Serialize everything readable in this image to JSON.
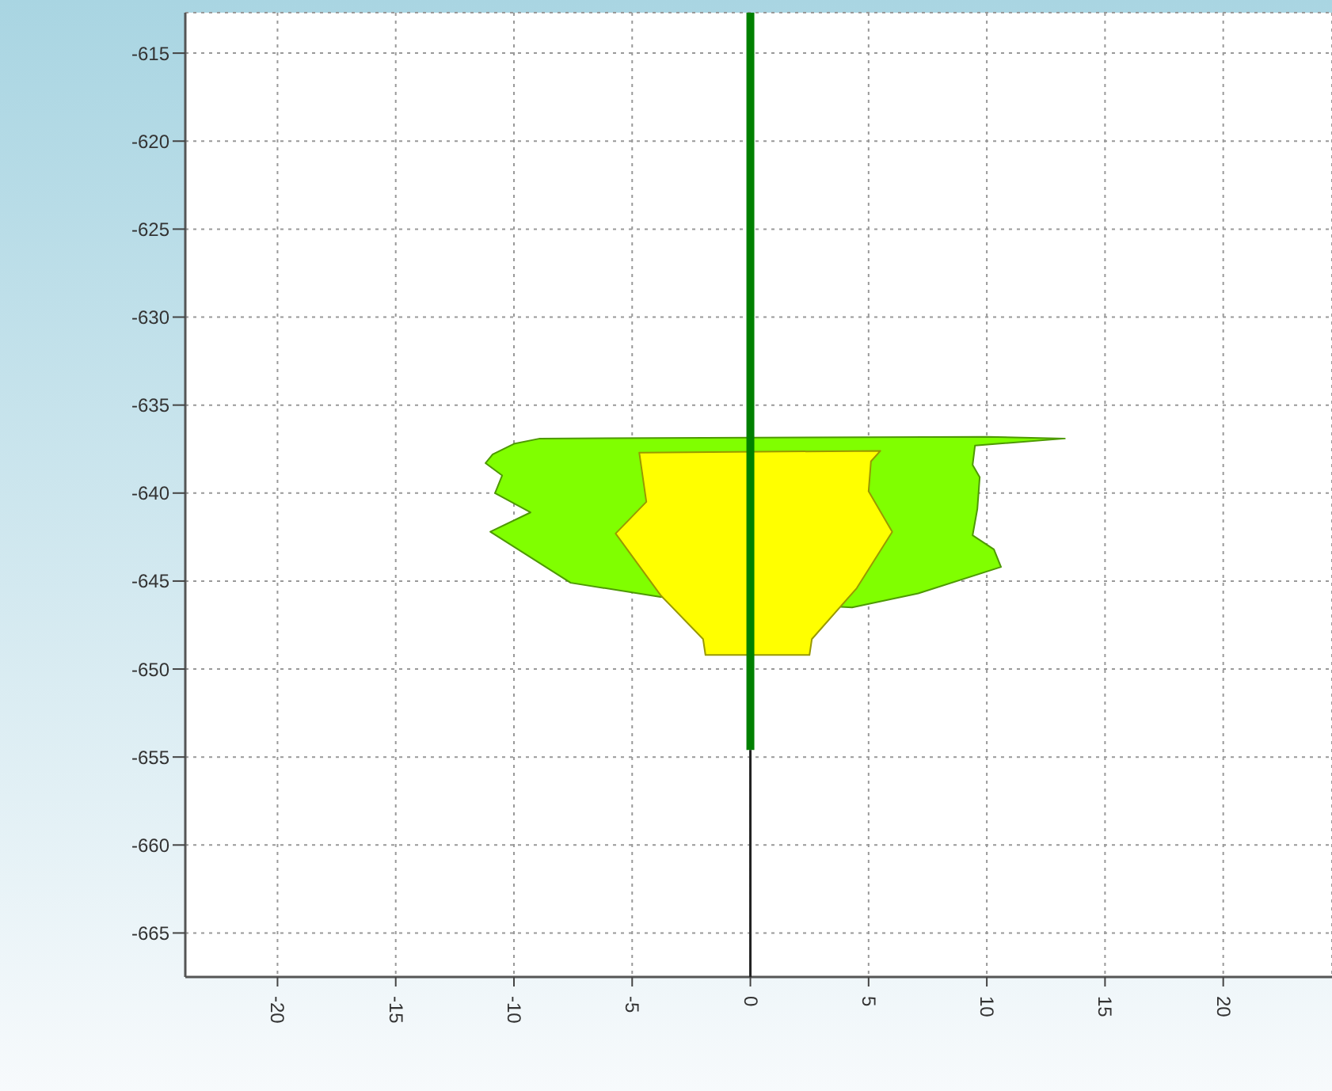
{
  "chart_data": {
    "type": "area",
    "xlim": [
      -23.9,
      24.6
    ],
    "xticks": [
      -20,
      -15,
      -10,
      -5,
      0,
      5,
      10,
      15,
      20
    ],
    "ylim": [
      -667.5,
      -612.7
    ],
    "yticks": [
      -615,
      -620,
      -625,
      -630,
      -635,
      -640,
      -645,
      -650,
      -655,
      -660,
      -665
    ],
    "grid": true,
    "marker": "none",
    "series": [
      {
        "color": "#80ff00",
        "x": [
          -10.0,
          -10.9,
          -11.2,
          -10.5,
          -10.8,
          -9.3,
          -11.0,
          -7.6,
          -3.8,
          4.3,
          7.1,
          10.6,
          10.3,
          9.4,
          9.6,
          9.7,
          9.4,
          9.5,
          13.3,
          10.0,
          -8.9
        ],
        "values": [
          -637.2,
          -637.8,
          -638.3,
          -639.0,
          -640.0,
          -641.1,
          -642.2,
          -645.1,
          -645.9,
          -646.5,
          -645.7,
          -644.2,
          -643.2,
          -642.4,
          -640.9,
          -639.1,
          -638.4,
          -637.3,
          -636.9,
          -636.8,
          -636.9
        ]
      },
      {
        "color": "#ffff00",
        "x": [
          -4.7,
          5.5,
          5.1,
          5.0,
          6.0,
          4.5,
          2.6,
          2.5,
          -1.9,
          -2.0,
          -3.8,
          -5.7,
          -4.4
        ],
        "values": [
          -637.7,
          -637.6,
          -638.2,
          -639.9,
          -642.2,
          -645.4,
          -648.3,
          -649.2,
          -649.2,
          -648.3,
          -645.8,
          -642.3,
          -640.5
        ]
      },
      {
        "type": "line",
        "color": "#008000",
        "x": [
          0,
          0
        ],
        "values": [
          -612.7,
          -654.6
        ]
      },
      {
        "type": "line",
        "color": "#222222",
        "x": [
          0,
          0
        ],
        "values": [
          -654.6,
          -667.5
        ]
      }
    ]
  }
}
